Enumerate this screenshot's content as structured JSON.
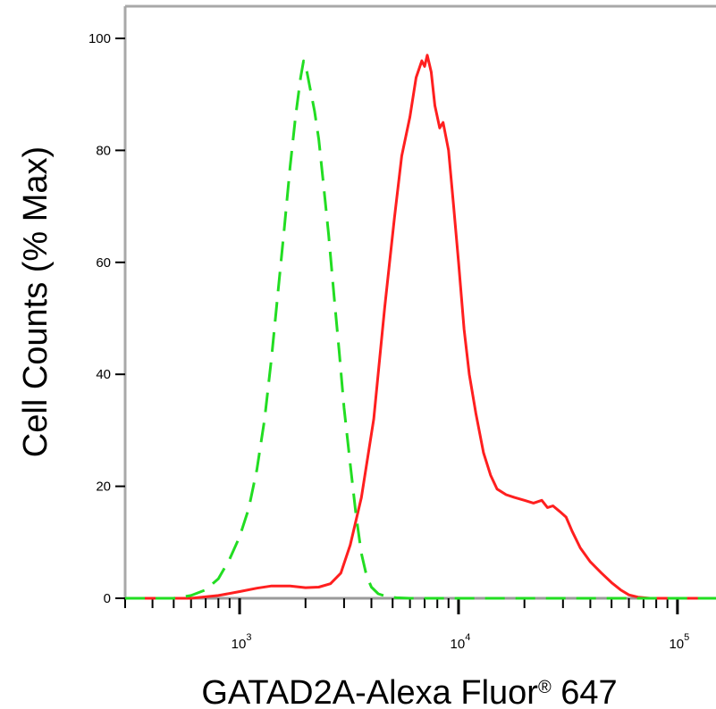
{
  "chart_data": {
    "type": "line",
    "title": "",
    "xlabel": "GATAD2A-Alexa Fluor® 647",
    "xlabel_main": "GATAD2A-Alexa Fluor",
    "xlabel_mark": "®",
    "xlabel_tail": " 647",
    "ylabel": "Cell Counts (% Max)",
    "x_scale": "log",
    "xlim": [
      300,
      150000
    ],
    "ylim": [
      0,
      100
    ],
    "grid": false,
    "x_major_ticks": [
      {
        "value": 1000,
        "base": "10",
        "exp": "3"
      },
      {
        "value": 10000,
        "base": "10",
        "exp": "4"
      },
      {
        "value": 100000,
        "base": "10",
        "exp": "5"
      }
    ],
    "y_ticks": [
      {
        "value": 0,
        "label": "0"
      },
      {
        "value": 20,
        "label": "20"
      },
      {
        "value": 40,
        "label": "40"
      },
      {
        "value": 60,
        "label": "60"
      },
      {
        "value": 80,
        "label": "80"
      },
      {
        "value": 100,
        "label": "100"
      }
    ],
    "series": [
      {
        "color": "#ff1f1f",
        "dash": "solid",
        "points": [
          [
            300,
            0
          ],
          [
            600,
            0
          ],
          [
            800,
            0.5
          ],
          [
            1000,
            1.2
          ],
          [
            1200,
            1.8
          ],
          [
            1400,
            2.2
          ],
          [
            1700,
            2.2
          ],
          [
            2000,
            1.9
          ],
          [
            2300,
            2.0
          ],
          [
            2600,
            2.6
          ],
          [
            2900,
            4.5
          ],
          [
            3200,
            9.5
          ],
          [
            3600,
            18
          ],
          [
            4100,
            32
          ],
          [
            4600,
            52
          ],
          [
            5100,
            68
          ],
          [
            5500,
            79
          ],
          [
            6000,
            86
          ],
          [
            6400,
            93
          ],
          [
            6800,
            96
          ],
          [
            7000,
            95
          ],
          [
            7200,
            97
          ],
          [
            7500,
            94
          ],
          [
            7800,
            88
          ],
          [
            8200,
            84
          ],
          [
            8500,
            85
          ],
          [
            9000,
            80
          ],
          [
            9500,
            70
          ],
          [
            10000,
            60
          ],
          [
            10600,
            48
          ],
          [
            11200,
            40
          ],
          [
            12000,
            33
          ],
          [
            13000,
            26
          ],
          [
            14000,
            22
          ],
          [
            15000,
            19.5
          ],
          [
            16500,
            18.5
          ],
          [
            18000,
            18
          ],
          [
            20000,
            17.5
          ],
          [
            22000,
            17
          ],
          [
            24000,
            17.5
          ],
          [
            25500,
            16.2
          ],
          [
            27000,
            16.5
          ],
          [
            29000,
            15.5
          ],
          [
            31000,
            14.5
          ],
          [
            33000,
            12
          ],
          [
            36000,
            9
          ],
          [
            40000,
            6.5
          ],
          [
            45000,
            4.5
          ],
          [
            50000,
            2.8
          ],
          [
            55000,
            1.5
          ],
          [
            60000,
            0.6
          ],
          [
            66000,
            0.2
          ],
          [
            75000,
            0
          ],
          [
            150000,
            0
          ]
        ]
      },
      {
        "color": "#22dd22",
        "dash": "dashed",
        "points": [
          [
            300,
            0
          ],
          [
            500,
            0
          ],
          [
            600,
            0.5
          ],
          [
            700,
            1.5
          ],
          [
            800,
            3.5
          ],
          [
            900,
            7
          ],
          [
            1000,
            11
          ],
          [
            1100,
            16
          ],
          [
            1200,
            23
          ],
          [
            1300,
            32
          ],
          [
            1400,
            43
          ],
          [
            1500,
            55
          ],
          [
            1600,
            66
          ],
          [
            1700,
            77
          ],
          [
            1800,
            86
          ],
          [
            1900,
            93
          ],
          [
            1960,
            96
          ],
          [
            2030,
            94
          ],
          [
            2100,
            91
          ],
          [
            2200,
            87
          ],
          [
            2300,
            82
          ],
          [
            2400,
            75
          ],
          [
            2550,
            65
          ],
          [
            2700,
            54
          ],
          [
            2850,
            44
          ],
          [
            3000,
            34
          ],
          [
            3200,
            24
          ],
          [
            3400,
            15
          ],
          [
            3600,
            8
          ],
          [
            3800,
            4
          ],
          [
            4000,
            2
          ],
          [
            4300,
            0.8
          ],
          [
            4700,
            0.3
          ],
          [
            5200,
            0.1
          ],
          [
            6000,
            0
          ],
          [
            150000,
            0
          ]
        ]
      }
    ]
  }
}
